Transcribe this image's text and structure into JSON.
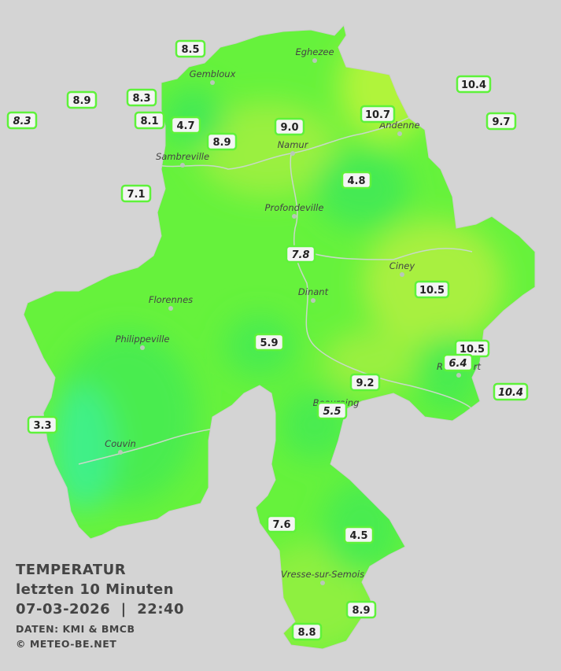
{
  "title": {
    "lines": [
      "TEMPERATUR",
      "letzten 10 Minuten",
      "07-03-2026  |  22:40"
    ],
    "source": "DATEN: KMI & BMCB",
    "copyright": "© METEO-BE.NET"
  },
  "cities": [
    {
      "name": "Eghezee"
    },
    {
      "name": "Gembloux"
    },
    {
      "name": "Andenne"
    },
    {
      "name": "Namur"
    },
    {
      "name": "Sambreville"
    },
    {
      "name": "Profondeville"
    },
    {
      "name": "Ciney"
    },
    {
      "name": "Dinant"
    },
    {
      "name": "Florennes"
    },
    {
      "name": "Philippeville"
    },
    {
      "name": "Beauraing"
    },
    {
      "name": "Rochefort"
    },
    {
      "name": "Couvin"
    },
    {
      "name": "Vresse-sur-Semois"
    }
  ],
  "stations": [
    {
      "value": "8.5",
      "italic": false
    },
    {
      "value": "8.9",
      "italic": false
    },
    {
      "value": "8.3",
      "italic": false
    },
    {
      "value": "8.3",
      "italic": true
    },
    {
      "value": "8.1",
      "italic": false
    },
    {
      "value": "4.7",
      "italic": false
    },
    {
      "value": "8.9",
      "italic": false
    },
    {
      "value": "9.0",
      "italic": false
    },
    {
      "value": "10.7",
      "italic": false
    },
    {
      "value": "10.4",
      "italic": false
    },
    {
      "value": "9.7",
      "italic": false
    },
    {
      "value": "7.1",
      "italic": false
    },
    {
      "value": "4.8",
      "italic": false
    },
    {
      "value": "7.8",
      "italic": true
    },
    {
      "value": "10.5",
      "italic": false
    },
    {
      "value": "5.9",
      "italic": false
    },
    {
      "value": "10.5",
      "italic": false
    },
    {
      "value": "6.4",
      "italic": true
    },
    {
      "value": "9.2",
      "italic": false
    },
    {
      "value": "10.4",
      "italic": true
    },
    {
      "value": "5.5",
      "italic": true
    },
    {
      "value": "3.3",
      "italic": false
    },
    {
      "value": "7.6",
      "italic": false
    },
    {
      "value": "4.5",
      "italic": false
    },
    {
      "value": "8.9",
      "italic": false
    },
    {
      "value": "8.8",
      "italic": false
    }
  ]
}
